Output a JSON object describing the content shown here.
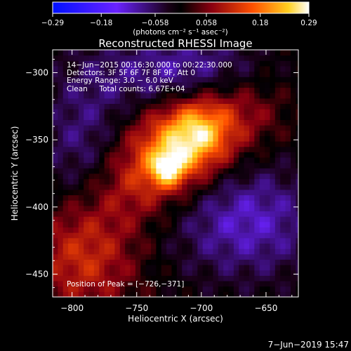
{
  "chart_data": {
    "type": "heatmap",
    "title": "Reconstructed RHESSI Image",
    "xlabel": "Heliocentric X (arcsec)",
    "ylabel": "Heliocentric Y (arcsec)",
    "xlim": [
      -815,
      -625
    ],
    "ylim": [
      -467,
      -283
    ],
    "x_ticks": [
      -800,
      -750,
      -700,
      -650
    ],
    "y_ticks": [
      -300,
      -350,
      -400,
      -450
    ],
    "x_tick_labels": [
      "−800",
      "−750",
      "−700",
      "−650"
    ],
    "y_tick_labels": [
      "−300",
      "−350",
      "−400",
      "−450"
    ],
    "info_lines": [
      "14−Jun−2015 00:16:30.000 to 00:22:30.000",
      "Detectors: 3F 5F 6F 7F 8F 9F, Att 0",
      "Energy Range: 3.0 − 6.0 keV",
      "Clean     Total counts: 6.67E+04"
    ],
    "peak_text": "Position of Peak = [−726,−371]",
    "peak_position": [
      -726,
      -371
    ],
    "colorbar": {
      "range": [
        -0.29,
        0.29
      ],
      "ticks": [
        -0.29,
        -0.18,
        -0.058,
        0.058,
        0.18,
        0.29
      ],
      "tick_labels": [
        "−0.29",
        "−0.18",
        "−0.058",
        "0.058",
        "0.18",
        "0.29"
      ],
      "label": "(photons cm⁻² s⁻¹ asec⁻²)"
    },
    "sources": [
      {
        "x": -726,
        "y": -371,
        "peak": 0.29
      },
      {
        "x": -703,
        "y": -345,
        "peak": 0.22
      },
      {
        "x": -715,
        "y": -355,
        "peak": 0.15
      }
    ],
    "grid": false
  },
  "footer": {
    "timestamp": "7−Jun−2019 15:47"
  },
  "colors": {
    "background": "#000000",
    "foreground": "#ffffff"
  }
}
